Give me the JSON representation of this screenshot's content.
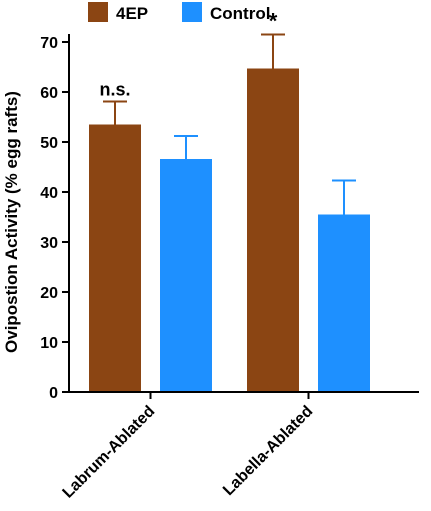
{
  "chart_data": {
    "type": "bar",
    "ylabel": "Ovipostion Activity (% egg rafts)",
    "xlabel": "",
    "ylim": [
      0,
      70
    ],
    "yticks": [
      0,
      10,
      20,
      30,
      40,
      50,
      60,
      70
    ],
    "categories": [
      "Labrum-Ablated",
      "Labella-Ablated"
    ],
    "series": [
      {
        "name": "4EP",
        "color": "#8B4513",
        "values": [
          53.5,
          64.7
        ],
        "errors": [
          4.6,
          6.8
        ]
      },
      {
        "name": "Control",
        "color": "#1E90FF",
        "values": [
          46.6,
          35.5
        ],
        "errors": [
          4.6,
          6.8
        ]
      }
    ],
    "annotations": [
      "n.s.",
      "*"
    ],
    "legend": "top",
    "grid": false
  }
}
